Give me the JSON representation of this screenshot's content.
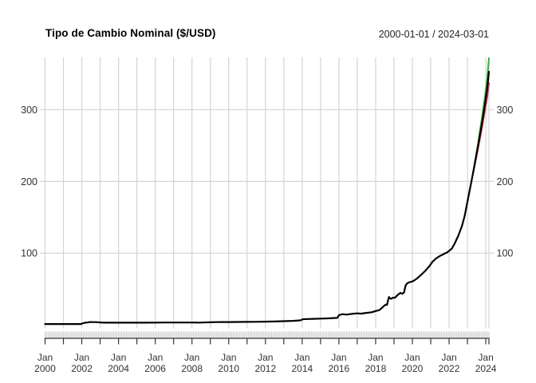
{
  "header": {
    "title": "Tipo de Cambio Nominal ($/USD)",
    "date_range": "2000-01-01 / 2024-03-01"
  },
  "chart_data": {
    "type": "line",
    "title": "Tipo de Cambio Nominal ($/USD)",
    "subtitle": "2000-01-01 / 2024-03-01",
    "xlabel": "",
    "ylabel": "",
    "grid": true,
    "legend": "none",
    "xlim": [
      2000.0,
      2024.17
    ],
    "ylim": [
      -5,
      373
    ],
    "y_ticks": [
      100,
      200,
      300
    ],
    "y_axis_side": "both",
    "x_minor_ticks": "monthly",
    "x_year_ticks_every": 1,
    "x_labeled_years": [
      2000,
      2002,
      2004,
      2006,
      2008,
      2010,
      2012,
      2014,
      2016,
      2018,
      2020,
      2022,
      2024
    ],
    "x_month_label": "Jan",
    "colors": {
      "grid": "#d4d4d4",
      "minor_tick": "#c9c9c9",
      "axis": "#333333",
      "tick_label": "#333333",
      "series_main": "#000000",
      "series_upper": "#2db42d",
      "series_lower": "#e0315b"
    },
    "series": [
      {
        "id": "upper",
        "color_key": "series_upper",
        "stroke_width": 2,
        "points": [
          [
            2023.3,
            211.0
          ],
          [
            2023.4,
            226.5
          ],
          [
            2023.6,
            257.0
          ],
          [
            2023.8,
            291.0
          ],
          [
            2023.95,
            317.0
          ],
          [
            2024.08,
            345.0
          ],
          [
            2024.17,
            372.0
          ]
        ]
      },
      {
        "id": "lower",
        "color_key": "series_lower",
        "stroke_width": 2,
        "points": [
          [
            2023.3,
            211.0
          ],
          [
            2023.4,
            223.5
          ],
          [
            2023.6,
            249.0
          ],
          [
            2023.8,
            276.0
          ],
          [
            2023.95,
            299.0
          ],
          [
            2024.08,
            318.0
          ],
          [
            2024.17,
            337.0
          ]
        ]
      },
      {
        "id": "main",
        "color_key": "series_main",
        "stroke_width": 2.2,
        "points": [
          [
            2000.0,
            1.0
          ],
          [
            2000.5,
            1.0
          ],
          [
            2001.0,
            1.0
          ],
          [
            2001.5,
            1.0
          ],
          [
            2001.95,
            1.0
          ],
          [
            2002.0,
            1.55
          ],
          [
            2002.08,
            2.1
          ],
          [
            2002.17,
            2.95
          ],
          [
            2002.3,
            3.1
          ],
          [
            2002.45,
            3.75
          ],
          [
            2002.55,
            3.65
          ],
          [
            2002.7,
            3.7
          ],
          [
            2002.85,
            3.55
          ],
          [
            2003.0,
            3.25
          ],
          [
            2003.25,
            2.95
          ],
          [
            2003.5,
            2.85
          ],
          [
            2003.75,
            2.9
          ],
          [
            2004.0,
            2.9
          ],
          [
            2004.5,
            2.96
          ],
          [
            2005.0,
            2.91
          ],
          [
            2005.5,
            2.89
          ],
          [
            2006.0,
            3.05
          ],
          [
            2006.5,
            3.08
          ],
          [
            2007.0,
            3.09
          ],
          [
            2007.5,
            3.13
          ],
          [
            2008.0,
            3.16
          ],
          [
            2008.4,
            3.05
          ],
          [
            2008.8,
            3.3
          ],
          [
            2009.0,
            3.49
          ],
          [
            2009.3,
            3.72
          ],
          [
            2009.6,
            3.83
          ],
          [
            2010.0,
            3.8
          ],
          [
            2010.5,
            3.93
          ],
          [
            2011.0,
            4.01
          ],
          [
            2011.5,
            4.13
          ],
          [
            2012.0,
            4.34
          ],
          [
            2012.5,
            4.53
          ],
          [
            2013.0,
            4.98
          ],
          [
            2013.5,
            5.44
          ],
          [
            2013.9,
            6.1
          ],
          [
            2014.05,
            7.85
          ],
          [
            2014.3,
            8.05
          ],
          [
            2014.6,
            8.3
          ],
          [
            2015.0,
            8.6
          ],
          [
            2015.4,
            8.95
          ],
          [
            2015.8,
            9.5
          ],
          [
            2015.92,
            9.75
          ],
          [
            2016.0,
            13.4
          ],
          [
            2016.2,
            14.8
          ],
          [
            2016.4,
            14.2
          ],
          [
            2016.7,
            15.1
          ],
          [
            2017.0,
            15.9
          ],
          [
            2017.2,
            15.5
          ],
          [
            2017.5,
            16.6
          ],
          [
            2017.8,
            17.5
          ],
          [
            2018.0,
            19.2
          ],
          [
            2018.2,
            20.4
          ],
          [
            2018.35,
            23.6
          ],
          [
            2018.45,
            26.2
          ],
          [
            2018.55,
            28.2
          ],
          [
            2018.62,
            27.6
          ],
          [
            2018.68,
            34.5
          ],
          [
            2018.73,
            38.8
          ],
          [
            2018.78,
            37.0
          ],
          [
            2018.85,
            36.2
          ],
          [
            2018.95,
            37.9
          ],
          [
            2019.05,
            37.6
          ],
          [
            2019.2,
            41.6
          ],
          [
            2019.35,
            44.6
          ],
          [
            2019.45,
            43.2
          ],
          [
            2019.55,
            45.2
          ],
          [
            2019.63,
            54.8
          ],
          [
            2019.72,
            57.8
          ],
          [
            2019.82,
            59.2
          ],
          [
            2019.95,
            59.9
          ],
          [
            2020.1,
            61.8
          ],
          [
            2020.3,
            65.6
          ],
          [
            2020.5,
            70.3
          ],
          [
            2020.7,
            75.2
          ],
          [
            2020.9,
            80.8
          ],
          [
            2021.1,
            88.0
          ],
          [
            2021.3,
            92.8
          ],
          [
            2021.5,
            96.0
          ],
          [
            2021.7,
            98.6
          ],
          [
            2021.9,
            101.0
          ],
          [
            2022.0,
            103.0
          ],
          [
            2022.15,
            106.5
          ],
          [
            2022.3,
            113.0
          ],
          [
            2022.5,
            124.0
          ],
          [
            2022.7,
            138.0
          ],
          [
            2022.85,
            152.0
          ],
          [
            2023.0,
            172.0
          ],
          [
            2023.2,
            198.0
          ],
          [
            2023.4,
            225.0
          ],
          [
            2023.6,
            253.0
          ],
          [
            2023.8,
            283.0
          ],
          [
            2023.95,
            307.0
          ],
          [
            2024.08,
            331.0
          ],
          [
            2024.17,
            353.0
          ]
        ]
      }
    ]
  }
}
